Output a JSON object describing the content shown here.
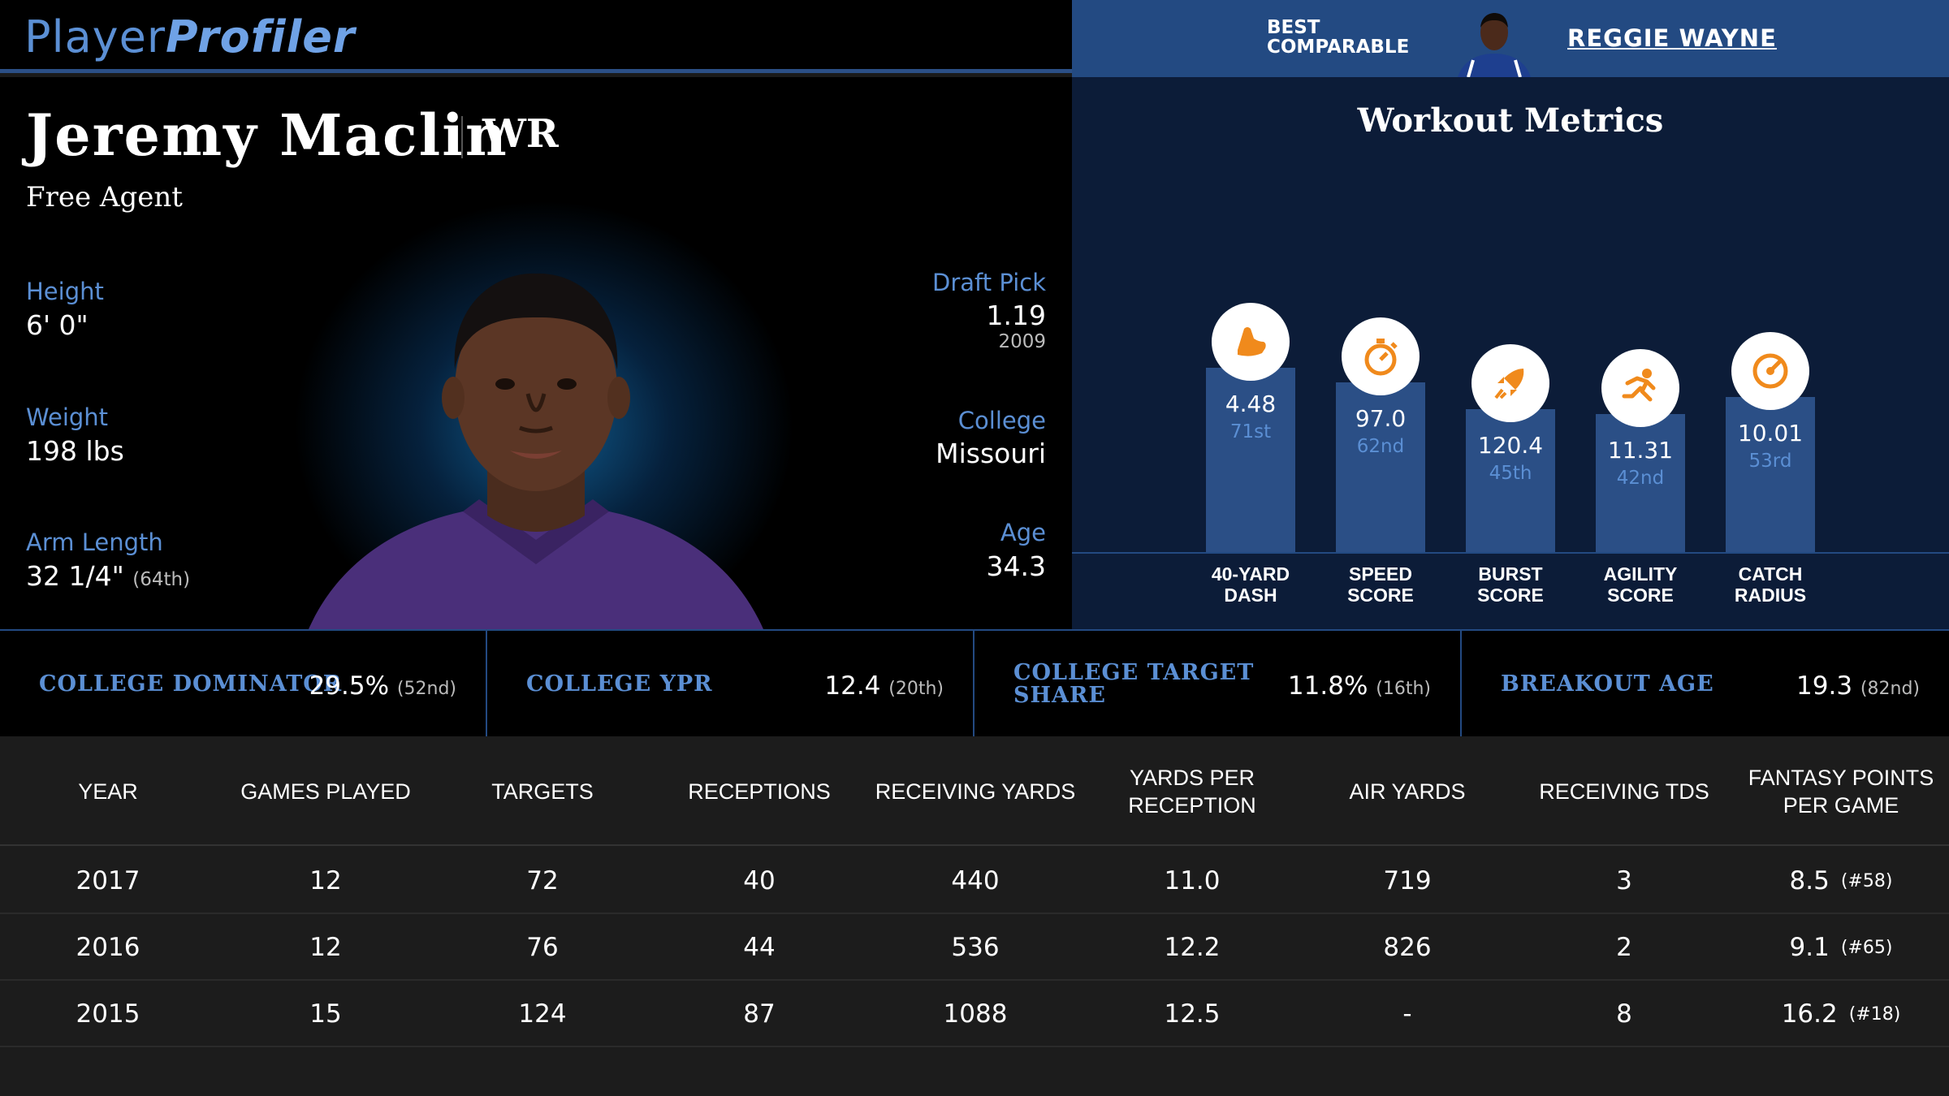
{
  "brand": {
    "name_light": "Player",
    "name_bold": "Profiler"
  },
  "player": {
    "name": "Jeremy Maclin",
    "position": "WR",
    "team": "Free Agent",
    "height_label": "Height",
    "height": "6' 0\"",
    "weight_label": "Weight",
    "weight": "198 lbs",
    "arm_label": "Arm Length",
    "arm": "32 1/4\"",
    "arm_rank": "(64th)",
    "draft_label": "Draft Pick",
    "draft_pick": "1.19",
    "draft_year": "2009",
    "college_label": "College",
    "college": "Missouri",
    "age_label": "Age",
    "age": "34.3"
  },
  "comparable": {
    "label_line1": "BEST",
    "label_line2": "COMPARABLE",
    "name": "REGGIE WAYNE"
  },
  "workout": {
    "title": "Workout Metrics",
    "metrics": [
      {
        "icon": "running-shoe-icon",
        "value": "4.48",
        "rank": "71st",
        "name1": "40-YARD",
        "name2": "DASH",
        "percentile": 71
      },
      {
        "icon": "stopwatch-icon",
        "value": "97.0",
        "rank": "62nd",
        "name1": "SPEED",
        "name2": "SCORE",
        "percentile": 62
      },
      {
        "icon": "rocket-icon",
        "value": "120.4",
        "rank": "45th",
        "name1": "BURST",
        "name2": "SCORE",
        "percentile": 45
      },
      {
        "icon": "runner-icon",
        "value": "11.31",
        "rank": "42nd",
        "name1": "AGILITY",
        "name2": "SCORE",
        "percentile": 42
      },
      {
        "icon": "target-icon",
        "value": "10.01",
        "rank": "53rd",
        "name1": "CATCH",
        "name2": "RADIUS",
        "percentile": 53
      }
    ]
  },
  "college": [
    {
      "label1": "COLLEGE DOMINATOR",
      "label2": "",
      "value": "29.5%",
      "rank": "(52nd)"
    },
    {
      "label1": "COLLEGE YPR",
      "label2": "",
      "value": "12.4",
      "rank": "(20th)"
    },
    {
      "label1": "COLLEGE TARGET",
      "label2": "SHARE",
      "value": "11.8%",
      "rank": "(16th)"
    },
    {
      "label1": "BREAKOUT AGE",
      "label2": "",
      "value": "19.3",
      "rank": "(82nd)"
    }
  ],
  "table": {
    "headers": [
      "YEAR",
      "GAMES PLAYED",
      "TARGETS",
      "RECEPTIONS",
      "RECEIVING YARDS",
      "YARDS PER RECEPTION",
      "AIR YARDS",
      "RECEIVING TDS",
      "FANTASY POINTS PER GAME"
    ],
    "rows": [
      [
        "2017",
        "12",
        "72",
        "40",
        "440",
        "11.0",
        "719",
        "3",
        "8.5",
        "(#58)"
      ],
      [
        "2016",
        "12",
        "76",
        "44",
        "536",
        "12.2",
        "826",
        "2",
        "9.1",
        "(#65)"
      ],
      [
        "2015",
        "15",
        "124",
        "87",
        "1088",
        "12.5",
        "-",
        "8",
        "16.2",
        "(#18)"
      ]
    ]
  },
  "colors": {
    "accent": "#5b8fd4",
    "bar": "#2b4f86",
    "icon": "#f08a1c",
    "panel": "#0c1c38"
  }
}
